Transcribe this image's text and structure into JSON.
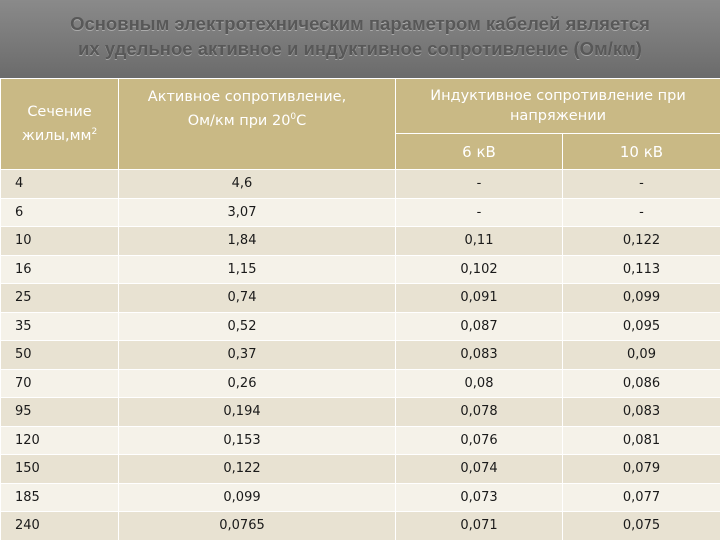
{
  "title": {
    "line1": "Основным электротехническим параметром кабелей является",
    "line2": "их удельное активное и индуктивное сопротивление (Ом/км)"
  },
  "table": {
    "header": {
      "section_line1": "Сечение",
      "section_line2": "жилы,мм",
      "section_sup": "2",
      "active_line1": "Активное сопротивление,",
      "active_line2": "Ом/км при 20",
      "active_sup": "0",
      "active_unit": "С",
      "inductive_line1": "Индуктивное сопротивление при",
      "inductive_line2": "напряжении",
      "kv6": "6 кВ",
      "kv10": "10 кВ"
    },
    "rows": [
      {
        "section": "4",
        "active": "4,6",
        "kv6": "-",
        "kv10": "-"
      },
      {
        "section": "6",
        "active": "3,07",
        "kv6": "-",
        "kv10": "-"
      },
      {
        "section": "10",
        "active": "1,84",
        "kv6": "0,11",
        "kv10": "0,122"
      },
      {
        "section": "16",
        "active": "1,15",
        "kv6": "0,102",
        "kv10": "0,113"
      },
      {
        "section": "25",
        "active": "0,74",
        "kv6": "0,091",
        "kv10": "0,099"
      },
      {
        "section": "35",
        "active": "0,52",
        "kv6": "0,087",
        "kv10": "0,095"
      },
      {
        "section": "50",
        "active": "0,37",
        "kv6": "0,083",
        "kv10": "0,09"
      },
      {
        "section": "70",
        "active": "0,26",
        "kv6": "0,08",
        "kv10": "0,086"
      },
      {
        "section": "95",
        "active": "0,194",
        "kv6": "0,078",
        "kv10": "0,083"
      },
      {
        "section": "120",
        "active": "0,153",
        "kv6": "0,076",
        "kv10": "0,081"
      },
      {
        "section": "150",
        "active": "0,122",
        "kv6": "0,074",
        "kv10": "0,079"
      },
      {
        "section": "185",
        "active": "0,099",
        "kv6": "0,073",
        "kv10": "0,077"
      },
      {
        "section": "240",
        "active": "0,0765",
        "kv6": "0,071",
        "kv10": "0,075"
      }
    ]
  }
}
